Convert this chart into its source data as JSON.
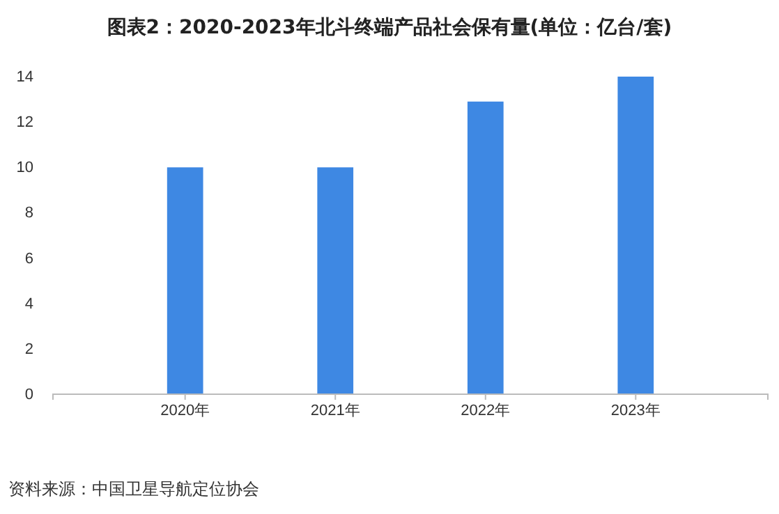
{
  "chart_data": {
    "type": "bar",
    "title": "图表2：2020-2023年北斗终端产品社会保有量(单位：亿台/套)",
    "categories": [
      "2020年",
      "2021年",
      "2022年",
      "2023年"
    ],
    "values": [
      10,
      10,
      12.9,
      14
    ],
    "color": "#3e88e3",
    "ylim": [
      0,
      14
    ],
    "yticks": [
      0,
      2,
      4,
      6,
      8,
      10,
      12,
      14
    ],
    "grid": false,
    "annotations": [
      "资料来源：中国卫星导航定位协会"
    ]
  }
}
